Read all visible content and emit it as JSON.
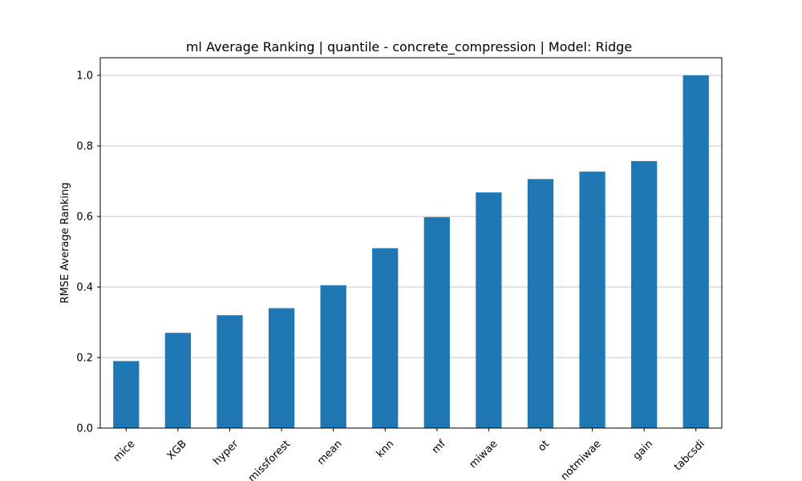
{
  "chart_data": {
    "type": "bar",
    "title": "ml Average Ranking | quantile - concrete_compression | Model: Ridge",
    "xlabel": "",
    "ylabel": "RMSE Average Ranking",
    "categories": [
      "mice",
      "XGB",
      "hyper",
      "missforest",
      "mean",
      "knn",
      "mf",
      "miwae",
      "ot",
      "notmiwae",
      "gain",
      "tabcsdi"
    ],
    "values": [
      0.19,
      0.27,
      0.32,
      0.34,
      0.405,
      0.51,
      0.598,
      0.668,
      0.706,
      0.727,
      0.757,
      1.0
    ],
    "ylim": [
      0,
      1.05
    ],
    "yticks": [
      "0.0",
      "0.2",
      "0.4",
      "0.6",
      "0.8",
      "1.0"
    ],
    "grid": "horizontal",
    "bar_color": "#1f77b4",
    "legend": "none"
  }
}
